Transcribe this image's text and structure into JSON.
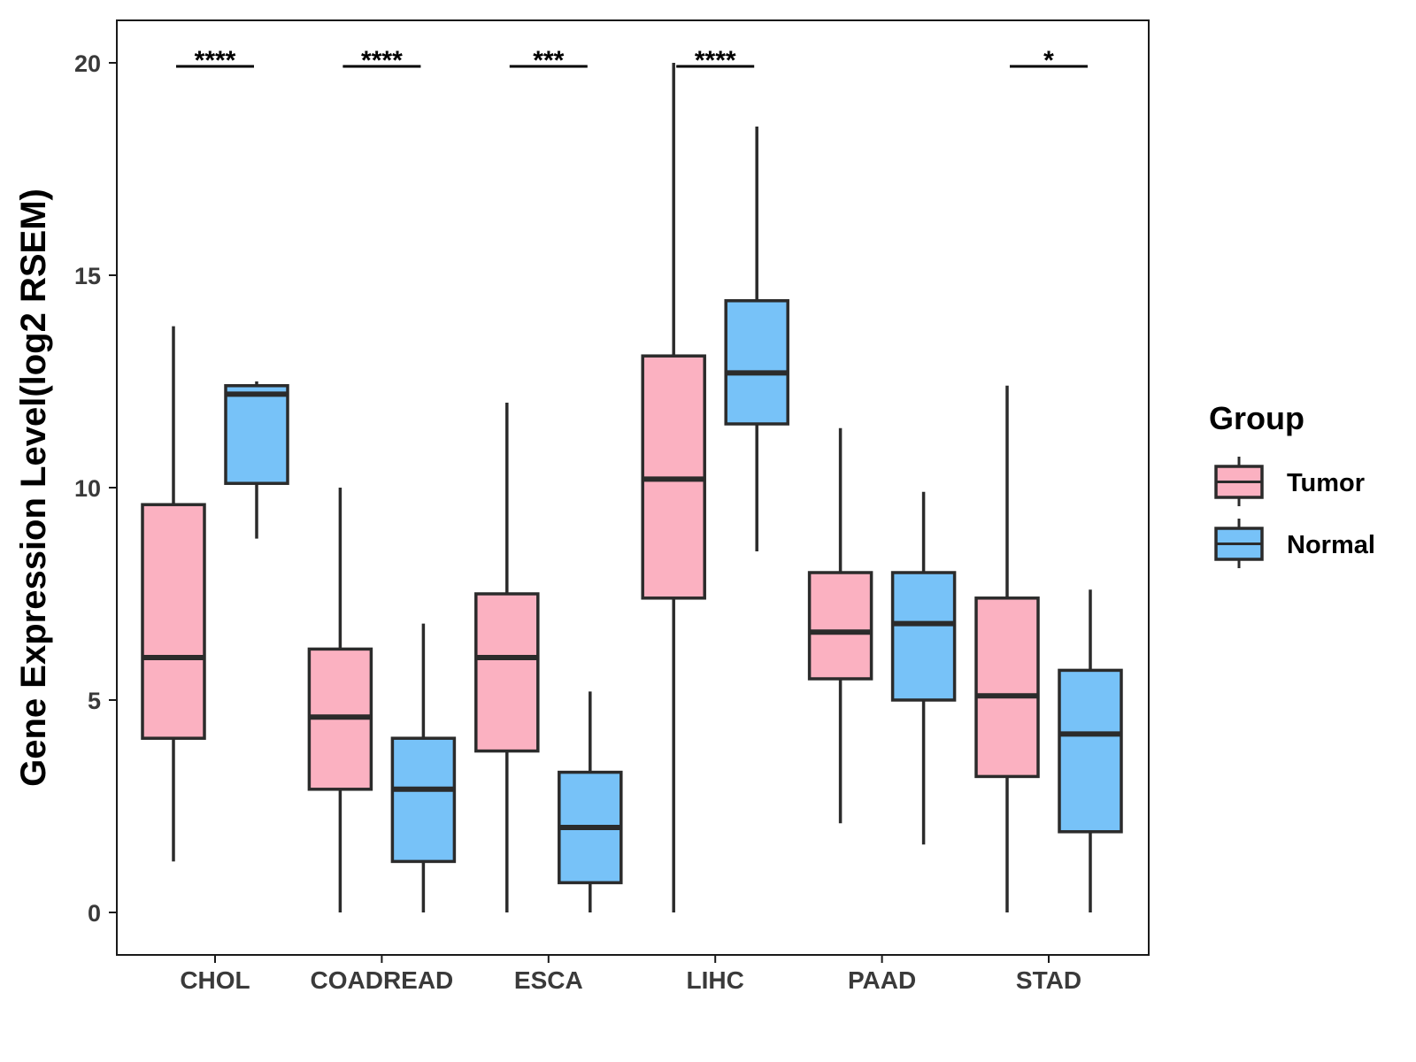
{
  "chart_data": {
    "type": "boxplot",
    "ylabel": "Gene Expression Level(log2 RSEM)",
    "xlabel": "",
    "ylim": [
      -1,
      21
    ],
    "yticks": [
      0,
      5,
      10,
      15,
      20
    ],
    "categories": [
      "CHOL",
      "COADREAD",
      "ESCA",
      "LIHC",
      "PAAD",
      "STAD"
    ],
    "legend": {
      "title": "Group",
      "placement": "right",
      "entries": [
        {
          "name": "Tumor",
          "color": "#FBB1C1"
        },
        {
          "name": "Normal",
          "color": "#77C2F8"
        }
      ]
    },
    "series": [
      {
        "name": "Tumor",
        "color": "#FBB1C1",
        "boxes": [
          {
            "category": "CHOL",
            "min": 1.2,
            "q1": 4.1,
            "median": 6.0,
            "q3": 9.6,
            "max": 13.8
          },
          {
            "category": "COADREAD",
            "min": 0.0,
            "q1": 2.9,
            "median": 4.6,
            "q3": 6.2,
            "max": 10.0
          },
          {
            "category": "ESCA",
            "min": 0.0,
            "q1": 3.8,
            "median": 6.0,
            "q3": 7.5,
            "max": 12.0
          },
          {
            "category": "LIHC",
            "min": 0.0,
            "q1": 7.4,
            "median": 10.2,
            "q3": 13.1,
            "max": 20.0
          },
          {
            "category": "PAAD",
            "min": 2.1,
            "q1": 5.5,
            "median": 6.6,
            "q3": 8.0,
            "max": 11.4
          },
          {
            "category": "STAD",
            "min": 0.0,
            "q1": 3.2,
            "median": 5.1,
            "q3": 7.4,
            "max": 12.4
          }
        ]
      },
      {
        "name": "Normal",
        "color": "#77C2F8",
        "boxes": [
          {
            "category": "CHOL",
            "min": 8.8,
            "q1": 10.1,
            "median": 12.2,
            "q3": 12.4,
            "max": 12.5
          },
          {
            "category": "COADREAD",
            "min": 0.0,
            "q1": 1.2,
            "median": 2.9,
            "q3": 4.1,
            "max": 6.8
          },
          {
            "category": "ESCA",
            "min": 0.0,
            "q1": 0.7,
            "median": 2.0,
            "q3": 3.3,
            "max": 5.2
          },
          {
            "category": "LIHC",
            "min": 8.5,
            "q1": 11.5,
            "median": 12.7,
            "q3": 14.4,
            "max": 18.5
          },
          {
            "category": "PAAD",
            "min": 1.6,
            "q1": 5.0,
            "median": 6.8,
            "q3": 8.0,
            "max": 9.9
          },
          {
            "category": "STAD",
            "min": 0.0,
            "q1": 1.9,
            "median": 4.2,
            "q3": 5.7,
            "max": 7.6
          }
        ]
      }
    ],
    "significance": [
      {
        "category": "CHOL",
        "label": "****"
      },
      {
        "category": "COADREAD",
        "label": "****"
      },
      {
        "category": "ESCA",
        "label": "***"
      },
      {
        "category": "LIHC",
        "label": "****"
      },
      {
        "category": "PAAD",
        "label": ""
      },
      {
        "category": "STAD",
        "label": "*"
      }
    ]
  }
}
